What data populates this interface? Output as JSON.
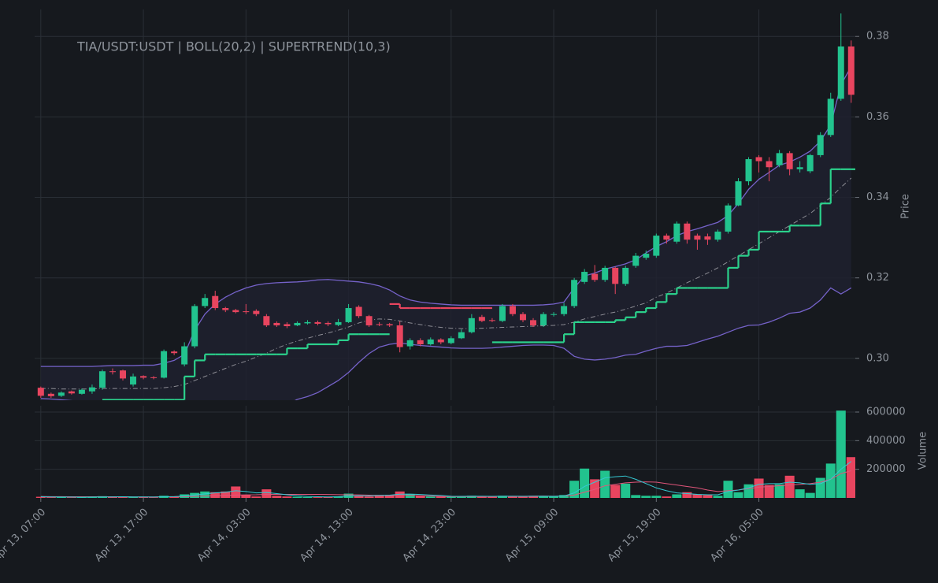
{
  "chart_data": [
    {
      "type": "candlestick",
      "title": "TIA/USDT:USDT | BOLL(20,2) | SUPERTREND(10,3)",
      "y_label": "Price",
      "open": [
        0.2927,
        0.2912,
        0.2907,
        0.2918,
        0.2912,
        0.2918,
        0.2927,
        0.2968,
        0.297,
        0.2935,
        0.2956,
        0.2953,
        0.2952,
        0.3017,
        0.2985,
        0.303,
        0.313,
        0.3155,
        0.3125,
        0.312,
        0.3117,
        0.3118,
        0.3105,
        0.3088,
        0.3085,
        0.3082,
        0.3087,
        0.309,
        0.3088,
        0.3083,
        0.309,
        0.3128,
        0.3105,
        0.3085,
        0.3085,
        0.3082,
        0.303,
        0.3045,
        0.3035,
        0.3047,
        0.3038,
        0.305,
        0.3065,
        0.3103,
        0.3095,
        0.3093,
        0.313,
        0.311,
        0.3095,
        0.3082,
        0.3108,
        0.311,
        0.313,
        0.319,
        0.321,
        0.3195,
        0.3225,
        0.3185,
        0.323,
        0.325,
        0.3255,
        0.3305,
        0.329,
        0.3335,
        0.3305,
        0.3303,
        0.3295,
        0.3315,
        0.338,
        0.344,
        0.35,
        0.349,
        0.348,
        0.351,
        0.347,
        0.3465,
        0.3505,
        0.3555,
        0.3645,
        0.3775
      ],
      "high": [
        0.293,
        0.2915,
        0.2918,
        0.292,
        0.2925,
        0.2935,
        0.2972,
        0.2975,
        0.2972,
        0.2962,
        0.2958,
        0.2956,
        0.3022,
        0.302,
        0.304,
        0.3135,
        0.316,
        0.3168,
        0.3128,
        0.3123,
        0.3135,
        0.3122,
        0.311,
        0.3092,
        0.309,
        0.3092,
        0.3095,
        0.3094,
        0.3092,
        0.3098,
        0.3135,
        0.3132,
        0.3108,
        0.309,
        0.3088,
        0.3092,
        0.305,
        0.305,
        0.3052,
        0.305,
        0.3055,
        0.3072,
        0.311,
        0.3108,
        0.31,
        0.3135,
        0.3135,
        0.3115,
        0.31,
        0.3115,
        0.3115,
        0.3138,
        0.32,
        0.3222,
        0.3232,
        0.323,
        0.3228,
        0.323,
        0.3262,
        0.3268,
        0.331,
        0.331,
        0.334,
        0.334,
        0.331,
        0.331,
        0.332,
        0.3385,
        0.3448,
        0.35,
        0.3505,
        0.35,
        0.3518,
        0.3515,
        0.349,
        0.3508,
        0.3562,
        0.366,
        0.3857,
        0.379
      ],
      "low": [
        0.2902,
        0.2902,
        0.2904,
        0.291,
        0.291,
        0.2912,
        0.2922,
        0.296,
        0.2945,
        0.293,
        0.2948,
        0.2948,
        0.295,
        0.3008,
        0.298,
        0.3025,
        0.3125,
        0.312,
        0.3115,
        0.3112,
        0.311,
        0.3105,
        0.3078,
        0.3078,
        0.3075,
        0.308,
        0.3084,
        0.3082,
        0.308,
        0.308,
        0.3088,
        0.31,
        0.3078,
        0.308,
        0.3078,
        0.3015,
        0.3022,
        0.303,
        0.3032,
        0.3035,
        0.3035,
        0.3048,
        0.3062,
        0.309,
        0.309,
        0.309,
        0.3105,
        0.309,
        0.3078,
        0.3078,
        0.3104,
        0.3105,
        0.3125,
        0.3185,
        0.319,
        0.319,
        0.316,
        0.318,
        0.3225,
        0.3245,
        0.325,
        0.3285,
        0.3285,
        0.3285,
        0.327,
        0.3282,
        0.329,
        0.331,
        0.3378,
        0.343,
        0.3462,
        0.344,
        0.3475,
        0.3455,
        0.3462,
        0.346,
        0.35,
        0.355,
        0.364,
        0.3635
      ],
      "close": [
        0.2907,
        0.2906,
        0.2915,
        0.2913,
        0.2922,
        0.2928,
        0.2968,
        0.2966,
        0.295,
        0.2955,
        0.2952,
        0.2952,
        0.3018,
        0.3013,
        0.303,
        0.313,
        0.315,
        0.3125,
        0.312,
        0.3115,
        0.3115,
        0.311,
        0.3082,
        0.3082,
        0.308,
        0.3088,
        0.309,
        0.3086,
        0.3085,
        0.309,
        0.3125,
        0.3105,
        0.3082,
        0.3083,
        0.3082,
        0.3028,
        0.3045,
        0.3035,
        0.3047,
        0.304,
        0.305,
        0.3065,
        0.31,
        0.3093,
        0.3093,
        0.313,
        0.311,
        0.3095,
        0.3082,
        0.311,
        0.311,
        0.313,
        0.3195,
        0.3215,
        0.3195,
        0.3225,
        0.3185,
        0.3225,
        0.3255,
        0.326,
        0.3305,
        0.3295,
        0.3335,
        0.3295,
        0.3295,
        0.3295,
        0.3315,
        0.338,
        0.344,
        0.3495,
        0.349,
        0.3475,
        0.351,
        0.347,
        0.3475,
        0.3505,
        0.3555,
        0.3645,
        0.3775,
        0.3655
      ],
      "bb_upper": [
        0.298,
        0.298,
        0.298,
        0.298,
        0.298,
        0.298,
        0.2981,
        0.2982,
        0.2982,
        0.2982,
        0.2983,
        0.2983,
        0.2988,
        0.2995,
        0.301,
        0.307,
        0.311,
        0.3135,
        0.3152,
        0.3165,
        0.3175,
        0.3182,
        0.3186,
        0.3188,
        0.3189,
        0.319,
        0.3192,
        0.3195,
        0.3196,
        0.3194,
        0.3192,
        0.319,
        0.3186,
        0.318,
        0.317,
        0.3155,
        0.3145,
        0.314,
        0.3137,
        0.3135,
        0.3133,
        0.3132,
        0.3132,
        0.3132,
        0.3132,
        0.3132,
        0.3132,
        0.3132,
        0.3132,
        0.3133,
        0.3135,
        0.314,
        0.3175,
        0.3205,
        0.3212,
        0.3222,
        0.3228,
        0.3235,
        0.3245,
        0.3262,
        0.3278,
        0.329,
        0.3305,
        0.3315,
        0.3322,
        0.333,
        0.3338,
        0.3355,
        0.3385,
        0.342,
        0.3445,
        0.3462,
        0.348,
        0.3488,
        0.35,
        0.3515,
        0.354,
        0.358,
        0.368,
        0.3725
      ],
      "bb_middle": [
        0.2925,
        0.2925,
        0.2924,
        0.2924,
        0.2924,
        0.2924,
        0.2925,
        0.2925,
        0.2925,
        0.2925,
        0.2925,
        0.2925,
        0.2927,
        0.293,
        0.2935,
        0.2945,
        0.2955,
        0.2965,
        0.2975,
        0.2985,
        0.2993,
        0.3003,
        0.3013,
        0.3025,
        0.3035,
        0.3043,
        0.305,
        0.3057,
        0.3063,
        0.307,
        0.3078,
        0.3088,
        0.3095,
        0.3098,
        0.3097,
        0.3093,
        0.3088,
        0.3084,
        0.308,
        0.3077,
        0.3075,
        0.3074,
        0.3074,
        0.3075,
        0.3076,
        0.3077,
        0.3078,
        0.3079,
        0.308,
        0.3081,
        0.3082,
        0.3084,
        0.309,
        0.3098,
        0.3104,
        0.311,
        0.3115,
        0.3122,
        0.313,
        0.3138,
        0.3152,
        0.3162,
        0.3175,
        0.3188,
        0.32,
        0.3212,
        0.3225,
        0.324,
        0.3255,
        0.327,
        0.3285,
        0.33,
        0.3315,
        0.333,
        0.3345,
        0.336,
        0.338,
        0.34,
        0.3425,
        0.3448
      ],
      "bb_lower": [
        0.29,
        0.2899,
        0.2897,
        0.2895,
        0.2892,
        0.2888,
        0.288,
        0.2876,
        0.2872,
        0.287,
        0.2868,
        0.2866,
        0.286,
        0.285,
        0.2835,
        0.2815,
        0.28,
        0.2795,
        0.2795,
        0.28,
        0.281,
        0.2825,
        0.284,
        0.2865,
        0.2885,
        0.2898,
        0.2905,
        0.2915,
        0.293,
        0.2945,
        0.2965,
        0.299,
        0.3012,
        0.3028,
        0.3035,
        0.3038,
        0.3035,
        0.3032,
        0.303,
        0.3028,
        0.3026,
        0.3025,
        0.3025,
        0.3025,
        0.3026,
        0.3028,
        0.303,
        0.3032,
        0.3033,
        0.3033,
        0.3032,
        0.3025,
        0.3005,
        0.2998,
        0.2996,
        0.2998,
        0.3002,
        0.3008,
        0.301,
        0.3018,
        0.3025,
        0.303,
        0.303,
        0.3032,
        0.304,
        0.3048,
        0.3055,
        0.3065,
        0.3075,
        0.3082,
        0.3083,
        0.309,
        0.31,
        0.3112,
        0.3115,
        0.3125,
        0.3145,
        0.3175,
        0.316,
        0.3175
      ],
      "supertrend_up": [
        null,
        null,
        null,
        null,
        null,
        null,
        0.2897,
        0.2897,
        0.2897,
        0.2897,
        0.2897,
        0.2897,
        0.2897,
        0.2897,
        0.2955,
        0.2995,
        0.301,
        0.301,
        0.301,
        0.301,
        0.301,
        0.301,
        0.301,
        0.301,
        0.3025,
        0.3025,
        0.3035,
        0.3035,
        0.3035,
        0.3045,
        0.306,
        0.306,
        0.306,
        0.306,
        null,
        null,
        null,
        null,
        null,
        null,
        null,
        null,
        null,
        null,
        0.304,
        0.304,
        0.304,
        0.304,
        0.304,
        0.304,
        0.304,
        0.306,
        0.309,
        0.309,
        0.309,
        0.309,
        0.3095,
        0.3102,
        0.3115,
        0.3125,
        0.314,
        0.316,
        0.3175,
        0.3175,
        0.3175,
        0.3175,
        0.3175,
        0.3225,
        0.3255,
        0.327,
        0.3315,
        0.3315,
        0.3315,
        0.333,
        0.333,
        0.333,
        0.3385,
        0.347,
        0.347,
        0.347
      ],
      "supertrend_down": [
        null,
        null,
        null,
        null,
        null,
        null,
        null,
        null,
        null,
        null,
        null,
        null,
        null,
        null,
        null,
        null,
        null,
        null,
        null,
        null,
        null,
        null,
        null,
        null,
        null,
        null,
        null,
        null,
        null,
        null,
        null,
        null,
        null,
        null,
        0.3135,
        0.3125,
        0.3125,
        0.3125,
        0.3125,
        0.3125,
        0.3125,
        0.3125,
        0.3125,
        0.3125,
        null,
        null,
        null,
        null,
        null,
        null,
        null,
        null,
        null,
        null,
        null,
        null,
        null,
        null,
        null,
        null,
        null,
        null,
        null,
        null,
        null,
        null,
        null,
        null,
        null,
        null,
        null,
        null,
        null,
        null,
        null,
        null,
        null,
        null,
        null,
        null
      ],
      "up_color": "#22c38e",
      "down_color": "#e8455f",
      "band_color": "#7562c9",
      "mid_color": "#8e8e96",
      "fill_color": "#1f2030",
      "supertrend_up_color": "#2bd18c",
      "supertrend_down_color": "#e8455f",
      "xlim": [
        -0.6,
        79.4
      ],
      "ylim": [
        0.2896,
        0.3867
      ],
      "yticks": [
        {
          "value": 0.3,
          "label": "0.30"
        },
        0.32,
        0.34,
        0.36,
        0.38
      ],
      "grid": true
    },
    {
      "type": "bar",
      "y_label": "Volume",
      "values": [
        8000,
        5000,
        6000,
        4000,
        5000,
        7000,
        12000,
        6000,
        8000,
        6000,
        5000,
        4000,
        15000,
        12000,
        25000,
        35000,
        45000,
        40000,
        45000,
        80000,
        20000,
        10000,
        60000,
        15000,
        10000,
        8000,
        6000,
        5000,
        7000,
        10000,
        30000,
        15000,
        10000,
        20000,
        20000,
        45000,
        25000,
        15000,
        10000,
        12000,
        8000,
        10000,
        15000,
        12000,
        10000,
        15000,
        12000,
        10000,
        15000,
        12000,
        10000,
        20000,
        120000,
        205000,
        130000,
        190000,
        90000,
        100000,
        20000,
        15000,
        15000,
        10000,
        25000,
        40000,
        25000,
        20000,
        15000,
        120000,
        40000,
        95000,
        135000,
        90000,
        95000,
        155000,
        60000,
        35000,
        140000,
        240000,
        610000,
        285000
      ],
      "ma_slow": [
        10000,
        9000,
        9000,
        8000,
        8000,
        8000,
        8000,
        8000,
        8000,
        7000,
        7000,
        7000,
        8000,
        8000,
        9000,
        11000,
        13000,
        15000,
        17000,
        20000,
        21000,
        22000,
        25000,
        25000,
        25000,
        25000,
        25000,
        25000,
        24000,
        23000,
        22000,
        21000,
        19000,
        18000,
        17000,
        17000,
        17000,
        15000,
        13000,
        10000,
        9000,
        9000,
        9000,
        10000,
        10000,
        11000,
        12000,
        12000,
        12000,
        13000,
        12000,
        13000,
        20000,
        40000,
        60000,
        85000,
        95000,
        105000,
        110000,
        112000,
        110000,
        100000,
        90000,
        80000,
        70000,
        55000,
        45000,
        50000,
        55000,
        65000,
        75000,
        80000,
        85000,
        90000,
        95000,
        100000,
        110000,
        130000,
        170000,
        190000
      ],
      "ma_fast": [
        8000,
        7000,
        6000,
        6000,
        5000,
        6000,
        7000,
        7000,
        8000,
        7000,
        7000,
        6000,
        8000,
        9000,
        13000,
        20000,
        28000,
        35000,
        40000,
        50000,
        45000,
        35000,
        38000,
        30000,
        22000,
        15000,
        10000,
        8000,
        7000,
        8000,
        14000,
        15000,
        14000,
        17000,
        19000,
        26000,
        27000,
        24000,
        20000,
        17000,
        12000,
        11000,
        12000,
        12000,
        11000,
        12000,
        12000,
        11000,
        12000,
        12000,
        11000,
        13000,
        35000,
        80000,
        110000,
        140000,
        148000,
        153000,
        130000,
        100000,
        70000,
        50000,
        35000,
        30000,
        25000,
        22000,
        22000,
        45000,
        55000,
        70000,
        95000,
        100000,
        100000,
        110000,
        105000,
        95000,
        100000,
        130000,
        200000,
        255000
      ],
      "ma_slow_color": "#e0557a",
      "ma_fast_color": "#35c9d3",
      "xlim": [
        -0.6,
        79.4
      ],
      "ylim": [
        0,
        644000
      ],
      "xticks": [
        {
          "value": 0,
          "label": "Apr 13, 07:00"
        },
        {
          "value": 10,
          "label": "Apr 13, 17:00"
        },
        {
          "value": 20,
          "label": "Apr 14, 03:00"
        },
        {
          "value": 30,
          "label": "Apr 14, 13:00"
        },
        {
          "value": 40,
          "label": "Apr 14, 23:00"
        },
        {
          "value": 50,
          "label": "Apr 15, 09:00"
        },
        {
          "value": 60,
          "label": "Apr 15, 19:00"
        },
        {
          "value": 70,
          "label": "Apr 16, 05:00"
        }
      ],
      "yticks": [
        200000,
        400000,
        600000
      ],
      "grid": true
    }
  ]
}
